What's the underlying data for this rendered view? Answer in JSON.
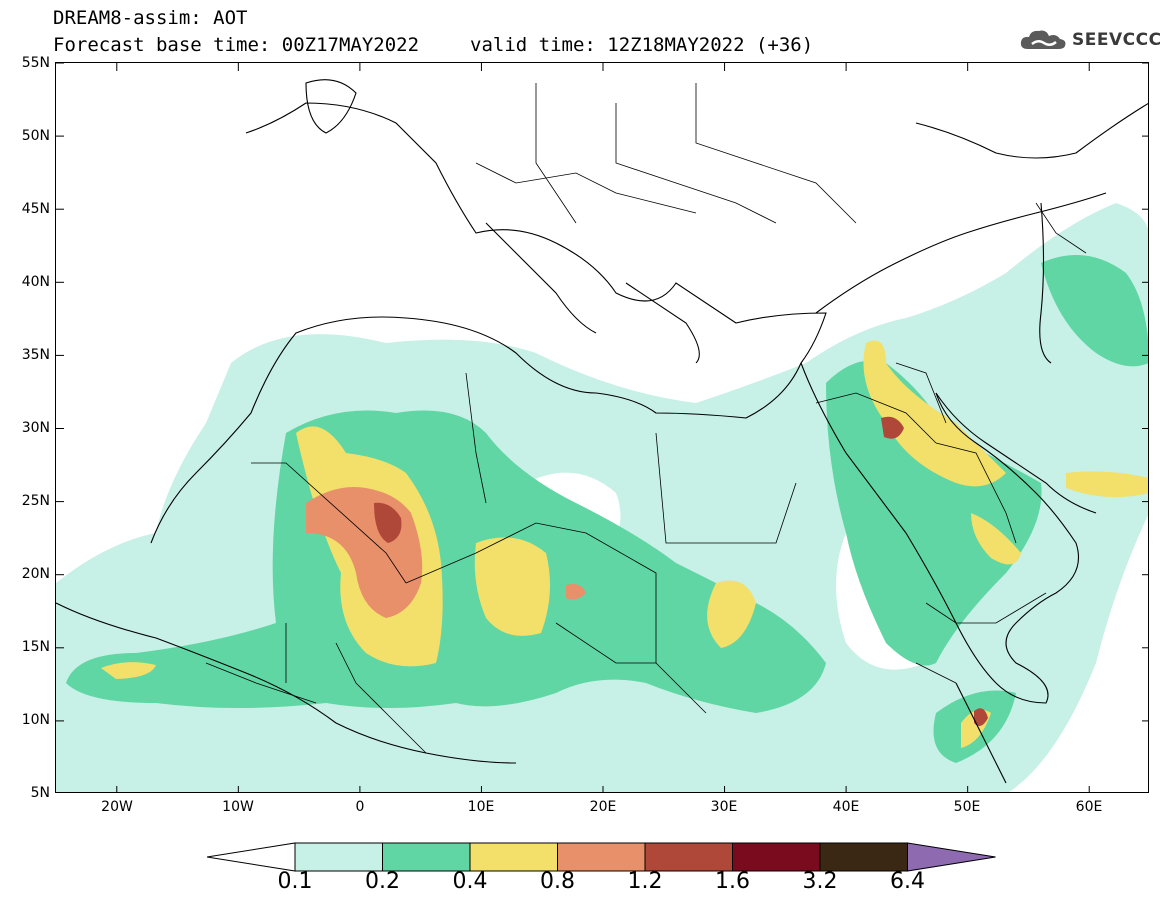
{
  "header": {
    "title_line1": "DREAM8-assim: AOT",
    "title_line2_base": "Forecast base time: 00Z17MAY2022",
    "title_line2_valid": "valid time: 12Z18MAY2022 (+36)",
    "logo_text": "SEEVCCC",
    "logo_icon": "cloud-icon"
  },
  "map": {
    "lon_range": [
      -25,
      65
    ],
    "lat_range": [
      5,
      55
    ],
    "lat_ticks": [
      "55N",
      "50N",
      "45N",
      "40N",
      "35N",
      "30N",
      "25N",
      "20N",
      "15N",
      "10N",
      "5N"
    ],
    "lon_ticks": [
      "20W",
      "10W",
      "0",
      "10E",
      "20E",
      "30E",
      "40E",
      "50E",
      "60E"
    ]
  },
  "colorbar": {
    "levels": [
      "0.1",
      "0.2",
      "0.4",
      "0.8",
      "1.2",
      "1.6",
      "3.2",
      "6.4"
    ],
    "colors": [
      "#ffffff",
      "#c7f0e6",
      "#5fd6a4",
      "#f2e06a",
      "#e8906a",
      "#b0483a",
      "#7a0a1e",
      "#3a2714",
      "#8e6bb0"
    ]
  }
}
